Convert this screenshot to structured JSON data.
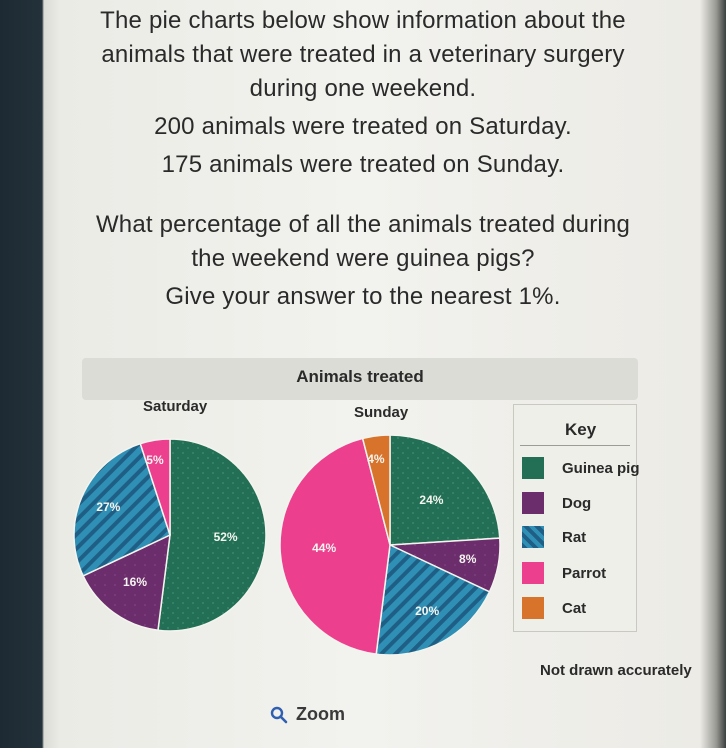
{
  "question": {
    "lines": [
      "The pie charts below show information about the",
      "animals that were treated in a veterinary surgery",
      "during one weekend.",
      "200 animals were treated on Saturday.",
      "175 animals were treated on Sunday.",
      "What percentage of all the animals treated during",
      "the weekend were guinea pigs?",
      "Give your answer to the nearest 1%."
    ]
  },
  "chart_data": {
    "type": "pie",
    "title": "Animals treated",
    "charts": [
      {
        "name": "Saturday",
        "slices": [
          {
            "category": "Guinea pig",
            "value": 52,
            "label": "52%"
          },
          {
            "category": "Dog",
            "value": 16,
            "label": "16%"
          },
          {
            "category": "Rat",
            "value": 27,
            "label": "27%"
          },
          {
            "category": "Parrot",
            "value": 5,
            "label": "5%"
          }
        ]
      },
      {
        "name": "Sunday",
        "slices": [
          {
            "category": "Guinea pig",
            "value": 24,
            "label": "24%"
          },
          {
            "category": "Dog",
            "value": 8,
            "label": "8%"
          },
          {
            "category": "Rat",
            "value": 20,
            "label": "20%"
          },
          {
            "category": "Parrot",
            "value": 44,
            "label": "44%"
          },
          {
            "category": "Cat",
            "value": 4,
            "label": "4%"
          }
        ]
      }
    ],
    "legend": {
      "title": "Key",
      "position": "right",
      "items": [
        {
          "label": "Guinea pig",
          "color": "#226f55"
        },
        {
          "label": "Dog",
          "color": "#6b2d6b"
        },
        {
          "label": "Rat",
          "color": "#2f8fb5"
        },
        {
          "label": "Parrot",
          "color": "#ec3f8e"
        },
        {
          "label": "Cat",
          "color": "#d8732c"
        }
      ]
    },
    "note": "Not drawn accurately"
  },
  "zoom": {
    "label": "Zoom",
    "icon": "search-icon"
  }
}
